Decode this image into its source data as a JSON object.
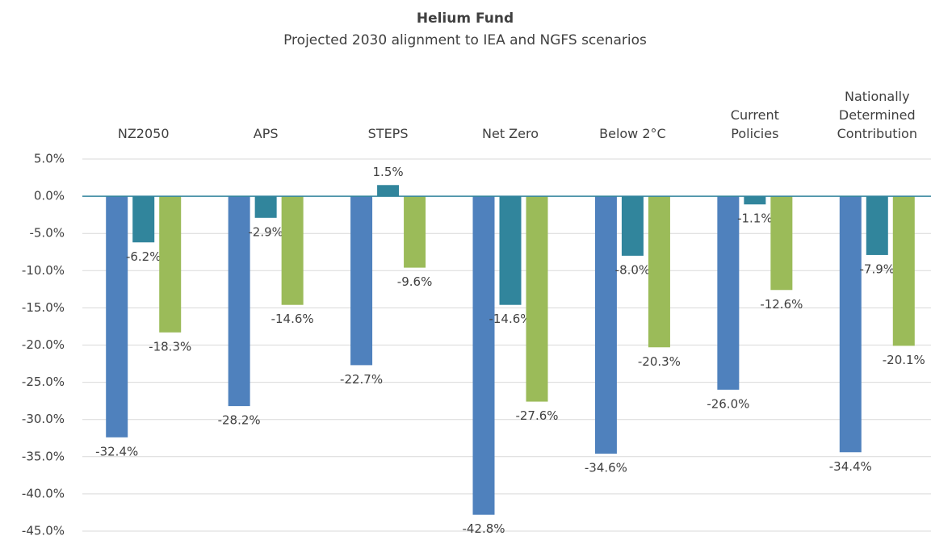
{
  "chart_data": {
    "type": "bar",
    "title": "Helium Fund",
    "subtitle": "Projected 2030 alignment to IEA and NGFS scenarios",
    "categories": [
      "NZ2050",
      "APS",
      "STEPS",
      "Net Zero",
      "Below 2°C",
      "Current Policies",
      "Nationally Determined Contribution"
    ],
    "series": [
      {
        "color": "#4f81bd",
        "values": [
          -32.4,
          -28.2,
          -22.7,
          -42.8,
          -34.6,
          -26.0,
          -34.4
        ],
        "value_labels": [
          "-32.4%",
          "-28.2%",
          "-22.7%",
          "-42.8%",
          "-34.6%",
          "-26.0%",
          "-34.4%"
        ]
      },
      {
        "color": "#31859c",
        "values": [
          -6.2,
          -2.9,
          1.5,
          -14.6,
          -8.0,
          -1.1,
          -7.9
        ],
        "value_labels": [
          "-6.2%",
          "-2.9%",
          "1.5%",
          "-14.6%",
          "-8.0%",
          "-1.1%",
          "-7.9%"
        ]
      },
      {
        "color": "#9bbb59",
        "values": [
          -18.3,
          -14.6,
          -9.6,
          -27.6,
          -20.3,
          -12.6,
          -20.1
        ],
        "value_labels": [
          "-18.3%",
          "-14.6%",
          "-9.6%",
          "-27.6%",
          "-20.3%",
          "-12.6%",
          "-20.1%"
        ]
      }
    ],
    "ylim": [
      -45,
      5
    ],
    "yticks": [
      {
        "value": 5,
        "label": "5.0%"
      },
      {
        "value": 0,
        "label": "0.0%"
      },
      {
        "value": -5,
        "label": "-5.0%"
      },
      {
        "value": -10,
        "label": "-10.0%"
      },
      {
        "value": -15,
        "label": "-15.0%"
      },
      {
        "value": -20,
        "label": "-20.0%"
      },
      {
        "value": -25,
        "label": "-25.0%"
      },
      {
        "value": -30,
        "label": "-30.0%"
      },
      {
        "value": -35,
        "label": "-35.0%"
      },
      {
        "value": -40,
        "label": "-40.0%"
      },
      {
        "value": -45,
        "label": "-45.0%"
      }
    ],
    "grid": true
  }
}
